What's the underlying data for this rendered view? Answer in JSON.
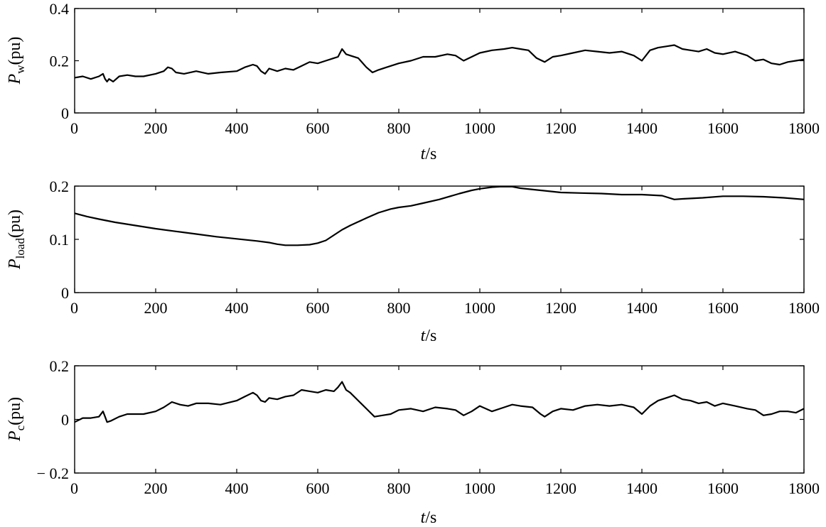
{
  "chart_data": [
    {
      "type": "line",
      "ylabel": {
        "main": "P",
        "sub": "w",
        "unit": "(pu)"
      },
      "xlabel": {
        "main": "t",
        "unit": "/s"
      },
      "xlim": [
        0,
        1800
      ],
      "ylim": [
        0,
        0.4
      ],
      "xticks": [
        0,
        200,
        400,
        600,
        800,
        1000,
        1200,
        1400,
        1600,
        1800
      ],
      "yticks": [
        0,
        0.2,
        0.4
      ],
      "ytick_labels": [
        "0",
        "0.2",
        "0.4"
      ],
      "grid": false,
      "series": [
        {
          "x": [
            0,
            20,
            40,
            60,
            70,
            75,
            80,
            85,
            95,
            110,
            130,
            150,
            170,
            200,
            220,
            230,
            240,
            250,
            270,
            300,
            330,
            360,
            400,
            420,
            440,
            450,
            460,
            470,
            480,
            500,
            520,
            540,
            560,
            580,
            600,
            620,
            640,
            650,
            660,
            670,
            680,
            700,
            720,
            735,
            750,
            770,
            800,
            830,
            860,
            890,
            920,
            940,
            960,
            980,
            1000,
            1030,
            1060,
            1080,
            1100,
            1120,
            1140,
            1160,
            1180,
            1200,
            1230,
            1260,
            1290,
            1320,
            1350,
            1380,
            1400,
            1420,
            1440,
            1460,
            1480,
            1500,
            1520,
            1540,
            1560,
            1580,
            1600,
            1630,
            1660,
            1680,
            1700,
            1720,
            1740,
            1760,
            1780,
            1800
          ],
          "y": [
            0.135,
            0.14,
            0.13,
            0.14,
            0.15,
            0.13,
            0.12,
            0.13,
            0.12,
            0.14,
            0.145,
            0.14,
            0.14,
            0.15,
            0.16,
            0.175,
            0.17,
            0.155,
            0.15,
            0.16,
            0.15,
            0.155,
            0.16,
            0.175,
            0.185,
            0.18,
            0.16,
            0.15,
            0.17,
            0.16,
            0.17,
            0.165,
            0.18,
            0.195,
            0.19,
            0.2,
            0.21,
            0.215,
            0.245,
            0.225,
            0.22,
            0.21,
            0.175,
            0.155,
            0.165,
            0.175,
            0.19,
            0.2,
            0.215,
            0.215,
            0.225,
            0.22,
            0.2,
            0.215,
            0.23,
            0.24,
            0.245,
            0.25,
            0.245,
            0.24,
            0.21,
            0.195,
            0.215,
            0.22,
            0.23,
            0.24,
            0.235,
            0.23,
            0.235,
            0.22,
            0.2,
            0.24,
            0.25,
            0.255,
            0.26,
            0.245,
            0.24,
            0.235,
            0.245,
            0.23,
            0.225,
            0.235,
            0.22,
            0.2,
            0.205,
            0.19,
            0.185,
            0.195,
            0.2,
            0.205
          ]
        }
      ]
    },
    {
      "type": "line",
      "ylabel": {
        "main": "P",
        "sub": "load",
        "unit": "(pu)"
      },
      "xlabel": {
        "main": "t",
        "unit": "/s"
      },
      "xlim": [
        0,
        1800
      ],
      "ylim": [
        0,
        0.2
      ],
      "xticks": [
        0,
        200,
        400,
        600,
        800,
        1000,
        1200,
        1400,
        1600,
        1800
      ],
      "yticks": [
        0,
        0.1,
        0.2
      ],
      "ytick_labels": [
        "0",
        "0.1",
        "0.2"
      ],
      "grid": false,
      "series": [
        {
          "x": [
            0,
            30,
            60,
            100,
            150,
            200,
            250,
            300,
            350,
            400,
            450,
            480,
            500,
            520,
            550,
            580,
            600,
            620,
            640,
            660,
            680,
            700,
            720,
            750,
            780,
            800,
            830,
            860,
            900,
            950,
            980,
            1000,
            1030,
            1050,
            1070,
            1080,
            1100,
            1150,
            1200,
            1250,
            1300,
            1350,
            1400,
            1450,
            1480,
            1500,
            1550,
            1600,
            1650,
            1700,
            1750,
            1800
          ],
          "y": [
            0.149,
            0.143,
            0.138,
            0.132,
            0.126,
            0.12,
            0.115,
            0.11,
            0.105,
            0.101,
            0.097,
            0.094,
            0.091,
            0.089,
            0.089,
            0.09,
            0.093,
            0.098,
            0.108,
            0.118,
            0.126,
            0.133,
            0.14,
            0.15,
            0.157,
            0.16,
            0.163,
            0.168,
            0.175,
            0.186,
            0.192,
            0.195,
            0.198,
            0.199,
            0.199,
            0.199,
            0.196,
            0.192,
            0.188,
            0.187,
            0.186,
            0.184,
            0.184,
            0.182,
            0.175,
            0.176,
            0.178,
            0.181,
            0.181,
            0.18,
            0.178,
            0.175
          ]
        }
      ]
    },
    {
      "type": "line",
      "ylabel": {
        "main": "P",
        "sub": "c",
        "unit": "(pu)"
      },
      "xlabel": {
        "main": "t",
        "unit": "/s"
      },
      "xlim": [
        0,
        1800
      ],
      "ylim": [
        -0.2,
        0.2
      ],
      "xticks": [
        0,
        200,
        400,
        600,
        800,
        1000,
        1200,
        1400,
        1600,
        1800
      ],
      "yticks": [
        -0.2,
        0,
        0.2
      ],
      "ytick_labels": [
        "− 0.2",
        "0",
        "0.2"
      ],
      "grid": false,
      "series": [
        {
          "x": [
            0,
            20,
            40,
            60,
            70,
            75,
            80,
            90,
            110,
            130,
            150,
            170,
            200,
            220,
            240,
            260,
            280,
            300,
            330,
            360,
            400,
            420,
            440,
            450,
            460,
            470,
            480,
            500,
            520,
            540,
            560,
            580,
            600,
            620,
            640,
            650,
            660,
            670,
            680,
            700,
            720,
            740,
            760,
            780,
            800,
            830,
            860,
            890,
            920,
            940,
            960,
            980,
            1000,
            1030,
            1060,
            1080,
            1100,
            1130,
            1150,
            1160,
            1180,
            1200,
            1230,
            1260,
            1290,
            1320,
            1350,
            1380,
            1400,
            1420,
            1440,
            1460,
            1480,
            1500,
            1520,
            1540,
            1560,
            1580,
            1600,
            1630,
            1660,
            1680,
            1700,
            1720,
            1740,
            1760,
            1780,
            1800
          ],
          "y": [
            -0.01,
            0.005,
            0.005,
            0.01,
            0.03,
            0.01,
            -0.01,
            -0.005,
            0.01,
            0.02,
            0.02,
            0.02,
            0.03,
            0.045,
            0.065,
            0.055,
            0.05,
            0.06,
            0.06,
            0.055,
            0.07,
            0.085,
            0.1,
            0.09,
            0.07,
            0.065,
            0.08,
            0.075,
            0.085,
            0.09,
            0.11,
            0.105,
            0.1,
            0.11,
            0.105,
            0.12,
            0.14,
            0.11,
            0.1,
            0.07,
            0.04,
            0.01,
            0.015,
            0.02,
            0.035,
            0.04,
            0.03,
            0.045,
            0.04,
            0.035,
            0.015,
            0.03,
            0.05,
            0.03,
            0.045,
            0.055,
            0.05,
            0.045,
            0.02,
            0.01,
            0.03,
            0.04,
            0.035,
            0.05,
            0.055,
            0.05,
            0.055,
            0.045,
            0.02,
            0.05,
            0.07,
            0.08,
            0.09,
            0.075,
            0.07,
            0.06,
            0.065,
            0.05,
            0.06,
            0.05,
            0.04,
            0.035,
            0.015,
            0.02,
            0.03,
            0.03,
            0.025,
            0.04
          ]
        }
      ]
    }
  ]
}
